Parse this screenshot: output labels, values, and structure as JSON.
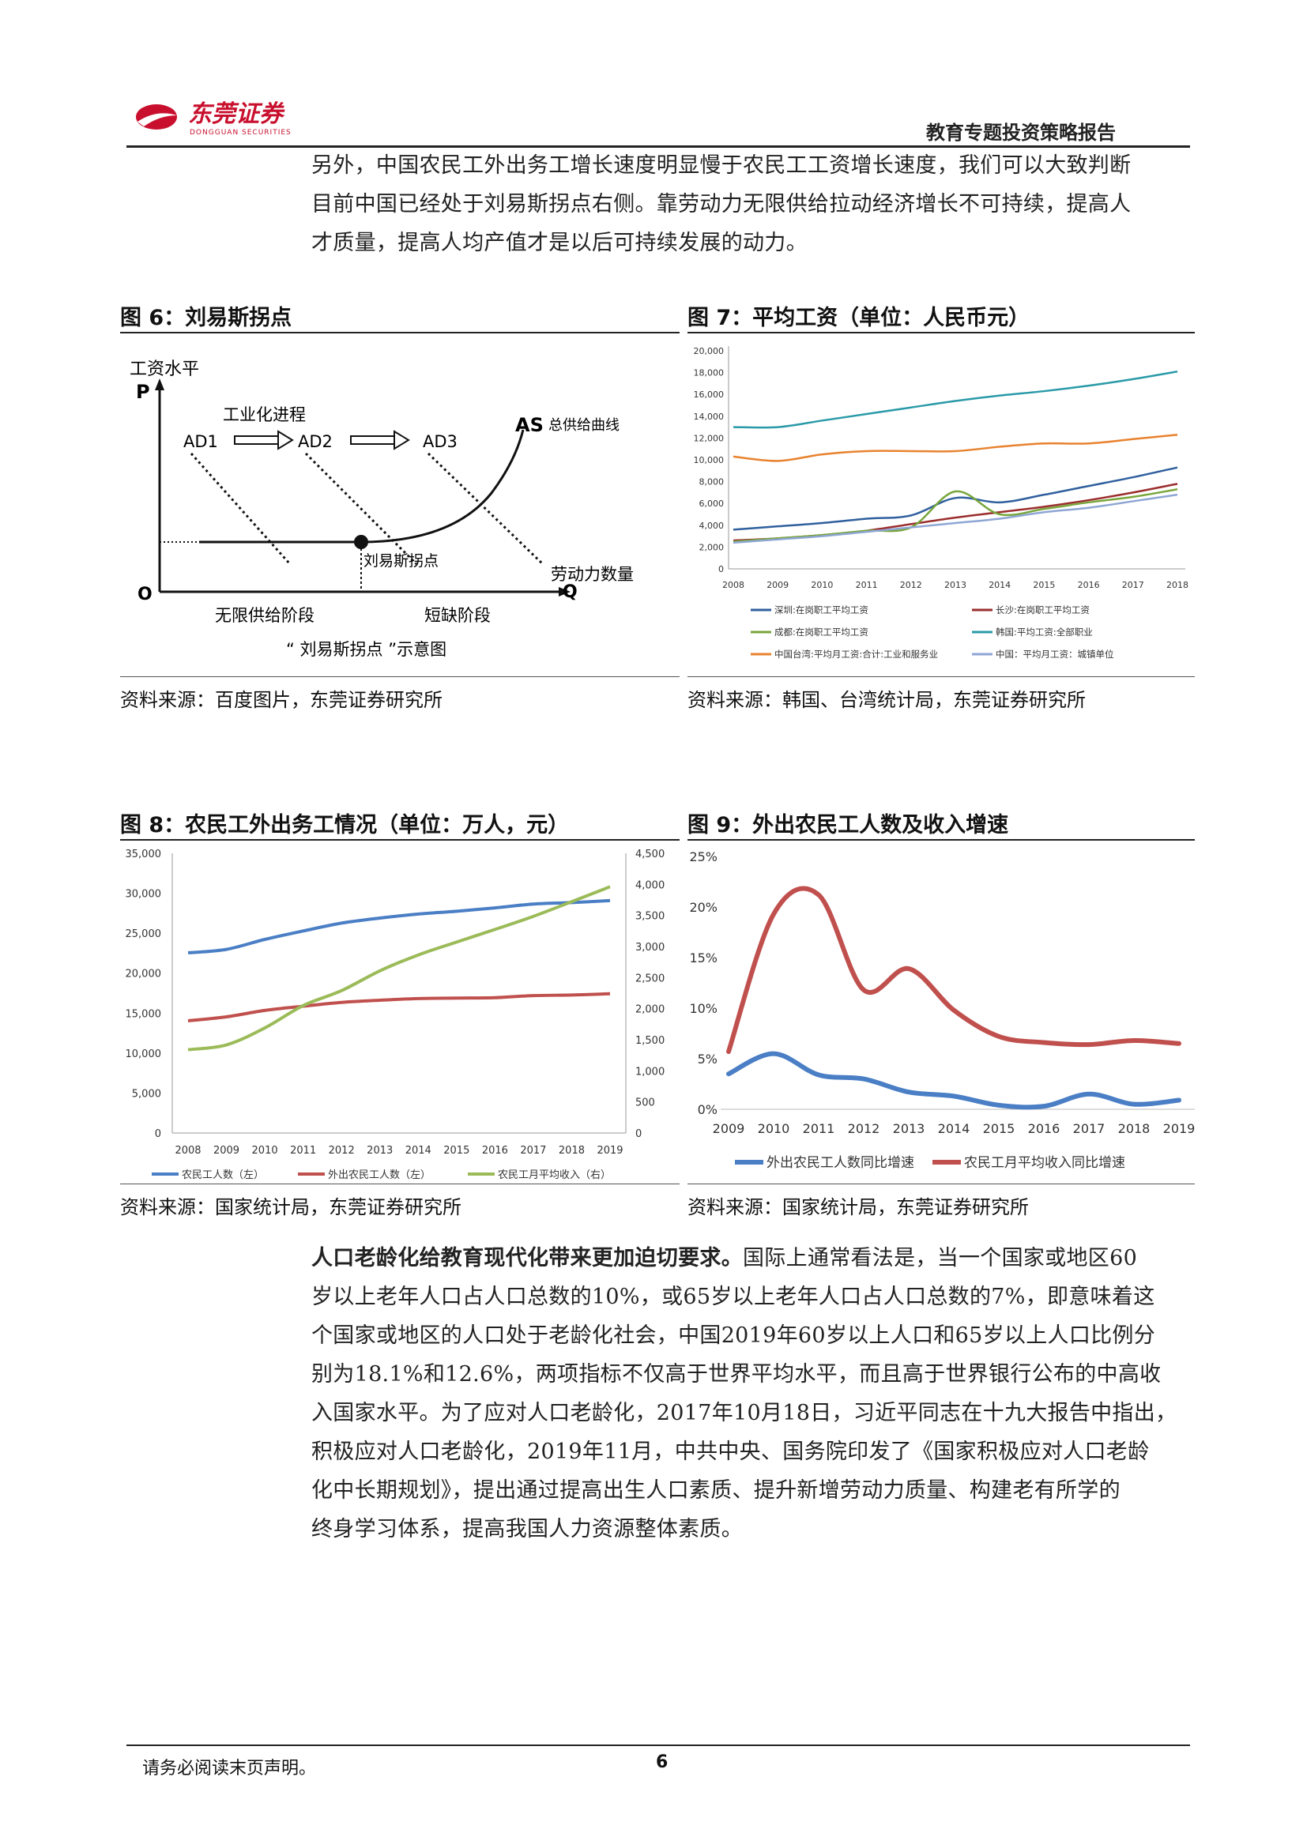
{
  "header": {
    "logo_cn": "东莞证券",
    "logo_en": "DONGGUAN SECURITIES",
    "report_title": "教育专题投资策略报告"
  },
  "intro_paragraph": [
    "另外，中国农民工外出务工增长速度明显慢于农民工工资增长速度，我们可以大致判断",
    "目前中国已经处于刘易斯拐点右侧。靠劳动力无限供给拉动经济增长不可持续，提高人",
    "才质量，提高人均产值才是以后可持续发展的动力。"
  ],
  "fig6": {
    "title": "图 6：刘易斯拐点",
    "source": "资料来源：百度图片，东莞证券研究所",
    "labels": {
      "y_axis": "工资水平",
      "p": "P",
      "origin": "O",
      "q": "Q",
      "industrialization": "工业化进程",
      "ad1": "AD1",
      "ad2": "AD2",
      "ad3": "AD3",
      "as": "AS",
      "as_desc": "总供给曲线",
      "point": "刘易斯拐点",
      "labor": "劳动力数量",
      "stage1": "无限供给阶段",
      "stage2": "短缺阶段",
      "caption": "“ 刘易斯拐点 ”示意图"
    }
  },
  "fig7": {
    "title": "图 7：平均工资（单位：人民币元）",
    "source": "资料来源：韩国、台湾统计局，东莞证券研究所"
  },
  "fig8": {
    "title": "图 8：农民工外出务工情况（单位：万人，元）",
    "source": "资料来源：国家统计局，东莞证券研究所"
  },
  "fig9": {
    "title": "图 9：外出农民工人数及收入增速",
    "source": "资料来源：国家统计局，东莞证券研究所"
  },
  "main_paragraph": {
    "bold_lead": "人口老龄化给教育现代化带来更加迫切要求。",
    "lines": [
      "国际上通常看法是，当一个国家或地区60",
      "岁以上老年人口占人口总数的10%，或65岁以上老年人口占人口总数的7%，即意味着这",
      "个国家或地区的人口处于老龄化社会，中国2019年60岁以上人口和65岁以上人口比例分",
      "别为18.1%和12.6%，两项指标不仅高于世界平均水平，而且高于世界银行公布的中高收",
      "入国家水平。为了应对人口老龄化，2017年10月18日，习近平同志在十九大报告中指出，",
      "积极应对人口老龄化，2019年11月，中共中央、国务院印发了《国家积极应对人口老龄",
      "化中长期规划》，提出通过提高出生人口素质、提升新增劳动力质量、构建老有所学的",
      "终身学习体系，提高我国人力资源整体素质。"
    ]
  },
  "footer": {
    "note": "请务必阅读末页声明。",
    "page": "6"
  },
  "chart_data": [
    {
      "type": "line",
      "id": "fig7",
      "x": [
        "2008",
        "2009",
        "2010",
        "2011",
        "2012",
        "2013",
        "2014",
        "2015",
        "2016",
        "2017",
        "2018"
      ],
      "ylim": [
        0,
        20000
      ],
      "yticks": [
        "0",
        "2,000",
        "4,000",
        "6,000",
        "8,000",
        "10,000",
        "12,000",
        "14,000",
        "16,000",
        "18,000",
        "20,000"
      ],
      "series": [
        {
          "name": "深圳:在岗职工平均工资",
          "color": "#2f5f9e",
          "values": [
            3600,
            3900,
            4200,
            4600,
            4900,
            6500,
            6100,
            6800,
            7600,
            8400,
            9300
          ]
        },
        {
          "name": "长沙:在岗职工平均工资",
          "color": "#9b2d2d",
          "values": [
            2600,
            2800,
            3100,
            3500,
            4100,
            4700,
            5200,
            5700,
            6300,
            7000,
            7800
          ]
        },
        {
          "name": "成都:在岗职工平均工资",
          "color": "#78a63c",
          "values": [
            2500,
            2800,
            3100,
            3500,
            3800,
            7100,
            5000,
            5500,
            6100,
            6600,
            7300
          ]
        },
        {
          "name": "韩国:平均工资:全部职业",
          "color": "#2a9aa8",
          "values": [
            13000,
            13000,
            13600,
            14200,
            14800,
            15400,
            15900,
            16300,
            16800,
            17400,
            18100
          ]
        },
        {
          "name": "中国台湾:平均月工资:合计:工业和服务业",
          "color": "#e8822e",
          "values": [
            10300,
            9900,
            10500,
            10800,
            10800,
            10800,
            11200,
            11500,
            11500,
            11900,
            12300
          ]
        },
        {
          "name": "中国：平均月工资：城镇单位",
          "color": "#8ea6d4",
          "values": [
            2400,
            2700,
            3000,
            3400,
            3800,
            4200,
            4600,
            5200,
            5600,
            6200,
            6800
          ]
        }
      ]
    },
    {
      "type": "line",
      "id": "fig8",
      "x": [
        "2008",
        "2009",
        "2010",
        "2011",
        "2012",
        "2013",
        "2014",
        "2015",
        "2016",
        "2017",
        "2018",
        "2019"
      ],
      "ylim_left": [
        0,
        35000
      ],
      "ylim_right": [
        0,
        4500
      ],
      "yticks_left": [
        "0",
        "5,000",
        "10,000",
        "15,000",
        "20,000",
        "25,000",
        "30,000",
        "35,000"
      ],
      "yticks_right": [
        "0",
        "500",
        "1,000",
        "1,500",
        "2,000",
        "2,500",
        "3,000",
        "3,500",
        "4,000",
        "4,500"
      ],
      "series": [
        {
          "name": "农民工人数（左）",
          "color": "#4a7ec5",
          "axis": "left",
          "values": [
            22542,
            22978,
            24223,
            25278,
            26261,
            26894,
            27395,
            27747,
            28171,
            28652,
            28836,
            29077
          ]
        },
        {
          "name": "外出农民工人数（左）",
          "color": "#c0504d",
          "axis": "left",
          "values": [
            14041,
            14533,
            15335,
            15863,
            16336,
            16610,
            16821,
            16884,
            16934,
            17185,
            17266,
            17425
          ]
        },
        {
          "name": "农民工月平均收入（右）",
          "color": "#9bbb59",
          "axis": "right",
          "values": [
            1340,
            1417,
            1690,
            2049,
            2290,
            2609,
            2864,
            3072,
            3275,
            3485,
            3721,
            3962
          ]
        }
      ]
    },
    {
      "type": "line",
      "id": "fig9",
      "x": [
        "2009",
        "2010",
        "2011",
        "2012",
        "2013",
        "2014",
        "2015",
        "2016",
        "2017",
        "2018",
        "2019"
      ],
      "ylim": [
        0,
        25
      ],
      "yticks": [
        "0%",
        "5%",
        "10%",
        "15%",
        "20%",
        "25%"
      ],
      "series": [
        {
          "name": "外出农民工人数同比增速",
          "color": "#4a7ec5",
          "values": [
            3.5,
            5.5,
            3.4,
            3.0,
            1.7,
            1.3,
            0.4,
            0.3,
            1.5,
            0.5,
            0.9
          ]
        },
        {
          "name": "农民工月平均收入同比增速",
          "color": "#c0504d",
          "values": [
            5.7,
            19.3,
            21.2,
            11.8,
            13.9,
            9.8,
            7.2,
            6.6,
            6.4,
            6.8,
            6.5
          ]
        }
      ]
    }
  ]
}
